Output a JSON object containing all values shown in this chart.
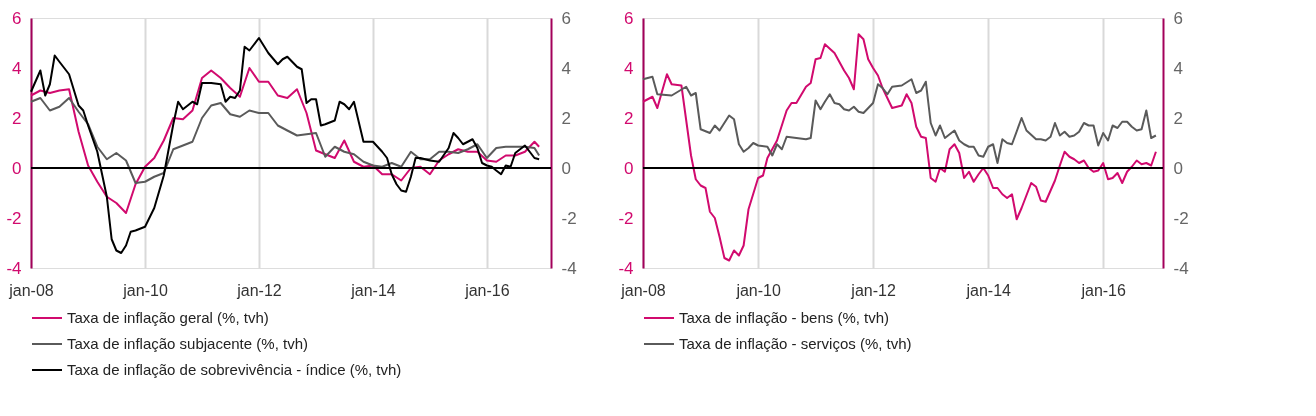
{
  "chart_data": [
    {
      "type": "line",
      "xlim": [
        "2008-01",
        "2017-02-15"
      ],
      "xticks": [
        {
          "value": "2008-01",
          "label": "jan-08"
        },
        {
          "value": "2010-01",
          "label": "jan-10"
        },
        {
          "value": "2012-01",
          "label": "jan-12"
        },
        {
          "value": "2014-01",
          "label": "jan-14"
        },
        {
          "value": "2016-01",
          "label": "jan-16"
        }
      ],
      "ylim": [
        -4,
        6
      ],
      "yticks": [
        -4,
        -2,
        0,
        2,
        4,
        6
      ],
      "y2lim": [
        -4,
        6
      ],
      "y2ticks": [
        -4,
        -2,
        0,
        2,
        4,
        6
      ],
      "grid": "x",
      "legend": "bottom",
      "marker": "none",
      "line_style": "solid",
      "ref_lines": [
        {
          "axis": "y",
          "value": 0,
          "color": "#000000"
        }
      ],
      "series": [
        {
          "name": "Taxa de inflação geral (%, tvh)",
          "color": "#d10a6e",
          "x": [
            "2008-01",
            "2008-03",
            "2008-05",
            "2008-07",
            "2008-09",
            "2008-11",
            "2009-01",
            "2009-03",
            "2009-05",
            "2009-07",
            "2009-09",
            "2009-11",
            "2010-01",
            "2010-03",
            "2010-05",
            "2010-07",
            "2010-09",
            "2010-11",
            "2011-01",
            "2011-03",
            "2011-05",
            "2011-07",
            "2011-09",
            "2011-11",
            "2012-01",
            "2012-03",
            "2012-05",
            "2012-07",
            "2012-09",
            "2012-11",
            "2013-01",
            "2013-03",
            "2013-05",
            "2013-07",
            "2013-09",
            "2013-11",
            "2014-01",
            "2014-03",
            "2014-05",
            "2014-07",
            "2014-09",
            "2014-11",
            "2015-01",
            "2015-03",
            "2015-05",
            "2015-07",
            "2015-09",
            "2015-11",
            "2016-01",
            "2016-03",
            "2016-05",
            "2016-07",
            "2016-09",
            "2016-11",
            "2016-12"
          ],
          "values": [
            2.9,
            3.1,
            3.0,
            3.1,
            3.15,
            1.45,
            0.1,
            -0.55,
            -1.15,
            -1.4,
            -1.8,
            -0.65,
            0.05,
            0.4,
            1.1,
            2.0,
            1.95,
            2.3,
            3.6,
            3.9,
            3.6,
            3.2,
            2.85,
            4.0,
            3.45,
            3.45,
            2.9,
            2.8,
            3.15,
            2.2,
            0.7,
            0.55,
            0.4,
            1.1,
            0.25,
            0.05,
            0.1,
            -0.25,
            -0.25,
            -0.5,
            0,
            0.05,
            -0.25,
            0.3,
            0.55,
            0.75,
            0.65,
            0.65,
            0.3,
            0.25,
            0.5,
            0.5,
            0.65,
            1.05,
            0.85
          ]
        },
        {
          "name": "Taxa de inflação subjacente (%, tvh)",
          "color": "#5a5a5a",
          "x": [
            "2008-01",
            "2008-03",
            "2008-05",
            "2008-07",
            "2008-09",
            "2008-11",
            "2009-01",
            "2009-03",
            "2009-05",
            "2009-07",
            "2009-09",
            "2009-11",
            "2010-01",
            "2010-03",
            "2010-05",
            "2010-07",
            "2010-09",
            "2010-11",
            "2011-01",
            "2011-03",
            "2011-05",
            "2011-07",
            "2011-09",
            "2011-11",
            "2012-01",
            "2012-03",
            "2012-05",
            "2012-07",
            "2012-09",
            "2012-11",
            "2013-01",
            "2013-03",
            "2013-05",
            "2013-07",
            "2013-09",
            "2013-11",
            "2014-01",
            "2014-03",
            "2014-05",
            "2014-07",
            "2014-09",
            "2014-11",
            "2015-01",
            "2015-03",
            "2015-05",
            "2015-07",
            "2015-09",
            "2015-11",
            "2016-01",
            "2016-03",
            "2016-05",
            "2016-07",
            "2016-09",
            "2016-11",
            "2016-12"
          ],
          "values": [
            2.65,
            2.8,
            2.3,
            2.45,
            2.8,
            2.25,
            1.75,
            0.85,
            0.35,
            0.6,
            0.3,
            -0.6,
            -0.55,
            -0.35,
            -0.2,
            0.75,
            0.9,
            1.05,
            2.0,
            2.5,
            2.6,
            2.15,
            2.05,
            2.3,
            2.2,
            2.2,
            1.7,
            1.5,
            1.3,
            1.35,
            1.4,
            0.45,
            0.85,
            0.65,
            0.55,
            0.25,
            0.1,
            0.05,
            0.2,
            0.05,
            0.65,
            0.35,
            0.35,
            0.65,
            0.65,
            0.6,
            0.75,
            0.95,
            0.4,
            0.8,
            0.85,
            0.85,
            0.85,
            0.8,
            0.5
          ]
        },
        {
          "name": "Taxa de inflação de sobrevivência - índice (%, tvh)",
          "color": "#000000",
          "x": [
            "2008-01",
            "2008-03",
            "2008-04",
            "2008-05",
            "2008-06",
            "2008-07",
            "2008-09",
            "2008-11",
            "2008-12",
            "2009-01",
            "2009-03",
            "2009-05",
            "2009-06",
            "2009-07",
            "2009-08",
            "2009-09",
            "2009-10",
            "2009-11",
            "2010-01",
            "2010-03",
            "2010-05",
            "2010-07",
            "2010-08",
            "2010-09",
            "2010-11",
            "2010-12",
            "2011-01",
            "2011-03",
            "2011-05",
            "2011-06",
            "2011-07",
            "2011-08",
            "2011-09",
            "2011-10",
            "2011-11",
            "2012-01",
            "2012-03",
            "2012-05",
            "2012-06",
            "2012-07",
            "2012-09",
            "2012-10",
            "2012-11",
            "2012-12",
            "2013-01",
            "2013-02",
            "2013-03",
            "2013-05",
            "2013-06",
            "2013-07",
            "2013-08",
            "2013-09",
            "2013-11",
            "2014-01",
            "2014-03",
            "2014-04",
            "2014-05",
            "2014-06",
            "2014-07",
            "2014-08",
            "2014-09",
            "2014-10",
            "2014-11",
            "2015-01",
            "2015-03",
            "2015-05",
            "2015-06",
            "2015-07",
            "2015-08",
            "2015-09",
            "2015-10",
            "2015-11",
            "2015-12",
            "2016-01",
            "2016-02",
            "2016-03",
            "2016-04",
            "2016-05",
            "2016-06",
            "2016-07",
            "2016-09",
            "2016-11",
            "2016-12"
          ],
          "values": [
            3.05,
            3.9,
            2.9,
            3.35,
            4.5,
            4.25,
            3.75,
            2.5,
            2.3,
            1.7,
            0.65,
            -1.15,
            -2.85,
            -3.3,
            -3.4,
            -3.1,
            -2.55,
            -2.5,
            -2.35,
            -1.6,
            -0.3,
            1.75,
            2.65,
            2.35,
            2.65,
            2.55,
            3.4,
            3.4,
            3.35,
            2.65,
            2.85,
            2.8,
            3.1,
            4.85,
            4.7,
            5.2,
            4.6,
            4.15,
            4.35,
            4.45,
            4.05,
            3.95,
            2.6,
            2.75,
            2.75,
            1.7,
            1.75,
            1.9,
            2.65,
            2.55,
            2.35,
            2.65,
            1.05,
            1.05,
            0.65,
            0.4,
            -0.25,
            -0.65,
            -0.9,
            -0.95,
            -0.35,
            0.4,
            0.4,
            0.3,
            0.25,
            0.8,
            1.4,
            1.2,
            0.95,
            1.05,
            1.15,
            0.8,
            0.2,
            0.1,
            0.05,
            -0.1,
            -0.25,
            0.1,
            0.05,
            0.6,
            0.9,
            0.4,
            0.35
          ]
        }
      ]
    },
    {
      "type": "line",
      "xlim": [
        "2008-01",
        "2017-01-15"
      ],
      "xticks": [
        {
          "value": "2008-01",
          "label": "jan-08"
        },
        {
          "value": "2010-01",
          "label": "jan-10"
        },
        {
          "value": "2012-01",
          "label": "jan-12"
        },
        {
          "value": "2014-01",
          "label": "jan-14"
        },
        {
          "value": "2016-01",
          "label": "jan-16"
        }
      ],
      "ylim": [
        -4,
        6
      ],
      "yticks": [
        -4,
        -2,
        0,
        2,
        4,
        6
      ],
      "y2lim": [
        -4,
        6
      ],
      "y2ticks": [
        -4,
        -2,
        0,
        2,
        4,
        6
      ],
      "grid": "x",
      "legend": "bottom",
      "marker": "none",
      "line_style": "solid",
      "ref_lines": [
        {
          "axis": "y",
          "value": 0,
          "color": "#000000"
        }
      ],
      "series": [
        {
          "name": "Taxa de inflação - bens (%, tvh)",
          "color": "#d10a6e",
          "x": [
            "2008-01",
            "2008-03",
            "2008-04",
            "2008-06",
            "2008-07",
            "2008-09",
            "2008-11",
            "2008-12",
            "2009-01",
            "2009-02",
            "2009-03",
            "2009-04",
            "2009-05",
            "2009-06",
            "2009-07",
            "2009-08",
            "2009-09",
            "2009-10",
            "2009-11",
            "2010-01",
            "2010-02",
            "2010-03",
            "2010-05",
            "2010-07",
            "2010-08",
            "2010-09",
            "2010-11",
            "2010-12",
            "2011-01",
            "2011-02",
            "2011-03",
            "2011-05",
            "2011-07",
            "2011-08",
            "2011-09",
            "2011-10",
            "2011-11",
            "2011-12",
            "2012-01",
            "2012-02",
            "2012-03",
            "2012-05",
            "2012-07",
            "2012-08",
            "2012-09",
            "2012-10",
            "2012-11",
            "2012-12",
            "2013-01",
            "2013-02",
            "2013-03",
            "2013-04",
            "2013-05",
            "2013-06",
            "2013-07",
            "2013-08",
            "2013-09",
            "2013-10",
            "2013-11",
            "2013-12",
            "2014-01",
            "2014-02",
            "2014-03",
            "2014-04",
            "2014-05",
            "2014-06",
            "2014-07",
            "2014-08",
            "2014-10",
            "2014-11",
            "2014-12",
            "2015-01",
            "2015-03",
            "2015-04",
            "2015-05",
            "2015-06",
            "2015-07",
            "2015-08",
            "2015-09",
            "2015-10",
            "2015-11",
            "2015-12",
            "2016-01",
            "2016-02",
            "2016-03",
            "2016-04",
            "2016-05",
            "2016-06",
            "2016-07",
            "2016-08",
            "2016-09",
            "2016-10",
            "2016-11",
            "2016-12"
          ],
          "values": [
            2.65,
            2.85,
            2.4,
            3.75,
            3.35,
            3.3,
            0.5,
            -0.45,
            -0.7,
            -0.8,
            -1.75,
            -2.0,
            -2.75,
            -3.6,
            -3.7,
            -3.3,
            -3.5,
            -3.1,
            -1.65,
            -0.4,
            -0.3,
            0.4,
            1.1,
            2.3,
            2.6,
            2.6,
            3.25,
            3.4,
            4.35,
            4.4,
            4.95,
            4.6,
            3.9,
            3.6,
            3.15,
            5.35,
            5.15,
            4.35,
            4.0,
            3.7,
            3.2,
            2.4,
            2.5,
            2.95,
            2.6,
            1.65,
            1.25,
            1.2,
            -0.4,
            -0.55,
            0,
            -0.15,
            0.75,
            0.95,
            0.6,
            -0.4,
            -0.15,
            -0.55,
            -0.25,
            0,
            -0.3,
            -0.8,
            -0.8,
            -1.05,
            -1.2,
            -1.05,
            -2.05,
            -1.6,
            -0.6,
            -0.75,
            -1.3,
            -1.35,
            -0.5,
            0.1,
            0.65,
            0.45,
            0.35,
            0.2,
            0.3,
            0,
            -0.15,
            -0.1,
            0.2,
            -0.45,
            -0.4,
            -0.2,
            -0.6,
            -0.15,
            0.05,
            0.3,
            0.15,
            0.2,
            0.1,
            0.65
          ]
        },
        {
          "name": "Taxa de inflação - serviços (%, tvh)",
          "color": "#5a5a5a",
          "x": [
            "2008-01",
            "2008-03",
            "2008-04",
            "2008-07",
            "2008-10",
            "2008-11",
            "2008-12",
            "2009-01",
            "2009-03",
            "2009-04",
            "2009-05",
            "2009-07",
            "2009-08",
            "2009-09",
            "2009-10",
            "2009-11",
            "2009-12",
            "2010-01",
            "2010-03",
            "2010-04",
            "2010-05",
            "2010-06",
            "2010-07",
            "2010-09",
            "2010-11",
            "2010-12",
            "2011-01",
            "2011-02",
            "2011-03",
            "2011-04",
            "2011-05",
            "2011-06",
            "2011-07",
            "2011-08",
            "2011-09",
            "2011-10",
            "2011-11",
            "2012-01",
            "2012-02",
            "2012-03",
            "2012-04",
            "2012-05",
            "2012-07",
            "2012-09",
            "2012-10",
            "2012-11",
            "2012-12",
            "2013-01",
            "2013-02",
            "2013-03",
            "2013-04",
            "2013-06",
            "2013-07",
            "2013-08",
            "2013-09",
            "2013-10",
            "2013-11",
            "2013-12",
            "2014-01",
            "2014-02",
            "2014-03",
            "2014-04",
            "2014-05",
            "2014-06",
            "2014-08",
            "2014-09",
            "2014-11",
            "2014-12",
            "2015-01",
            "2015-02",
            "2015-03",
            "2015-04",
            "2015-05",
            "2015-06",
            "2015-07",
            "2015-08",
            "2015-09",
            "2015-10",
            "2015-11",
            "2015-12",
            "2016-01",
            "2016-02",
            "2016-03",
            "2016-04",
            "2016-05",
            "2016-06",
            "2016-07",
            "2016-08",
            "2016-09",
            "2016-10",
            "2016-11",
            "2016-12"
          ],
          "values": [
            3.55,
            3.65,
            2.95,
            2.9,
            3.25,
            2.9,
            3.0,
            1.55,
            1.4,
            1.7,
            1.5,
            2.1,
            1.95,
            0.95,
            0.65,
            0.8,
            1.0,
            0.9,
            0.85,
            0.5,
            0.95,
            0.75,
            1.25,
            1.2,
            1.15,
            1.2,
            2.7,
            2.35,
            2.65,
            2.95,
            2.6,
            2.55,
            2.35,
            2.3,
            2.45,
            2.25,
            2.2,
            2.6,
            3.35,
            3.2,
            2.95,
            3.25,
            3.3,
            3.55,
            3.0,
            3.1,
            3.45,
            1.8,
            1.3,
            1.7,
            1.2,
            1.5,
            1.1,
            0.95,
            0.85,
            0.85,
            0.5,
            0.45,
            0.85,
            0.95,
            0.2,
            1.15,
            1.0,
            0.95,
            2.0,
            1.5,
            1.15,
            1.15,
            1.1,
            1.25,
            1.8,
            1.3,
            1.45,
            1.25,
            1.3,
            1.45,
            1.8,
            1.7,
            1.7,
            0.9,
            1.4,
            1.1,
            1.7,
            1.6,
            1.85,
            1.85,
            1.65,
            1.5,
            1.55,
            2.3,
            1.2,
            1.3
          ]
        }
      ]
    }
  ]
}
